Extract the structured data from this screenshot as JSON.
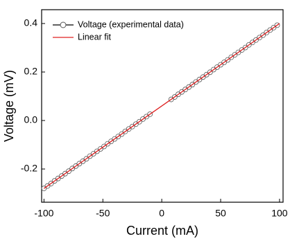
{
  "chart_data": {
    "type": "line",
    "x_label": "Current (mA)",
    "y_label": "Voltage (mV)",
    "xlim": [
      -102,
      103
    ],
    "ylim": [
      -0.337,
      0.457
    ],
    "xticks": [
      -100,
      -50,
      0,
      50,
      100
    ],
    "yticks": [
      {
        "value": -0.2,
        "label": "-0.2"
      },
      {
        "value": 0,
        "label": "0.0"
      },
      0.2,
      0.4
    ],
    "legend": "upper left",
    "series": [
      {
        "name": "Voltage (experimental data)",
        "color": "#555555",
        "marker": "open-circle",
        "x": [
          -100,
          -97,
          -94,
          -91,
          -88,
          -85,
          -82,
          -79,
          -76,
          -73,
          -70,
          -67,
          -64,
          -61,
          -58,
          -55,
          -52,
          -49,
          -46,
          -43,
          -40,
          -37,
          -34,
          -31,
          -28,
          -25,
          -22,
          -19,
          -16,
          -13,
          -10,
          8,
          11,
          14,
          17,
          20,
          23,
          26,
          29,
          32,
          35,
          38,
          41,
          44,
          47,
          50,
          53,
          56,
          59,
          62,
          65,
          68,
          71,
          74,
          77,
          80,
          83,
          86,
          89,
          92,
          95,
          98
        ],
        "values": [
          -0.28,
          -0.27,
          -0.26,
          -0.249,
          -0.239,
          -0.229,
          -0.219,
          -0.209,
          -0.198,
          -0.188,
          -0.178,
          -0.168,
          -0.158,
          -0.147,
          -0.137,
          -0.127,
          -0.117,
          -0.107,
          -0.096,
          -0.086,
          -0.076,
          -0.066,
          -0.056,
          -0.045,
          -0.035,
          -0.025,
          -0.015,
          -0.005,
          0.006,
          0.016,
          0.026,
          0.087,
          0.097,
          0.108,
          0.118,
          0.128,
          0.138,
          0.148,
          0.159,
          0.169,
          0.179,
          0.189,
          0.199,
          0.21,
          0.22,
          0.23,
          0.24,
          0.25,
          0.261,
          0.271,
          0.281,
          0.291,
          0.301,
          0.312,
          0.322,
          0.332,
          0.342,
          0.352,
          0.363,
          0.373,
          0.383,
          0.393
        ]
      },
      {
        "name": "Linear fit",
        "color": "#e02020",
        "marker": "none",
        "x": [
          -100,
          100
        ],
        "values": [
          -0.28,
          0.4
        ]
      }
    ]
  }
}
